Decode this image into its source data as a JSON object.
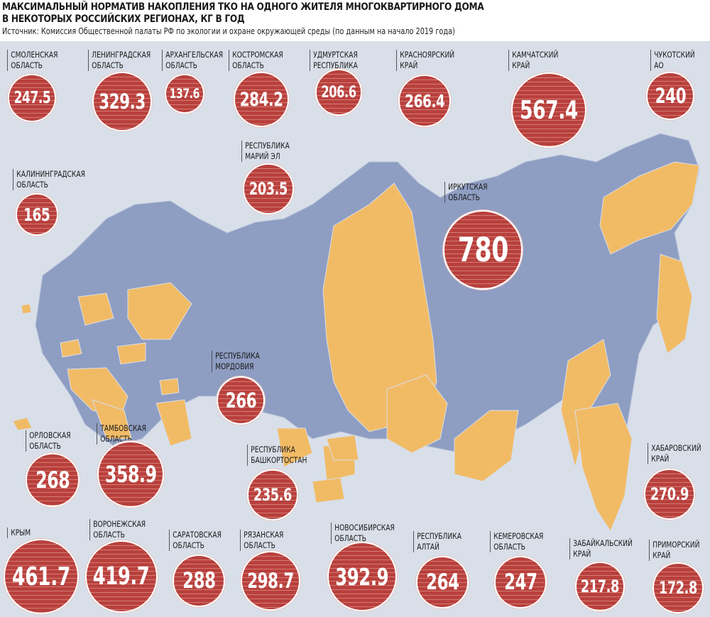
{
  "header": {
    "title_line1": "МАКСИМАЛЬНЫЙ НОРМАТИВ НАКОПЛЕНИЯ ТКО НА ОДНОГО ЖИТЕЛЯ МНОГОКВАРТИРНОГО ДОМА",
    "title_line2": "В НЕКОТОРЫХ РОССИЙСКИХ РЕГИОНАХ, КГ В ГОД",
    "source": "Источник: Комиссия  Общественной палаты РФ по экологии и охране окружающей среды (по данным на начало 2019 года)"
  },
  "colors": {
    "background": "#d8dfe9",
    "map_region": "#8e9dc2",
    "highlight_region": "#f1bb66",
    "circle": "#b8403d"
  },
  "regions": [
    {
      "name": "СМОЛЕНСКАЯ\nОБЛАСТЬ",
      "value": "247.5"
    },
    {
      "name": "ЛЕНИНГРАДСКАЯ\nОБЛАСТЬ",
      "value": "329.3"
    },
    {
      "name": "АРХАНГЕЛЬСКАЯ\nОБЛАСТЬ",
      "value": "137.6"
    },
    {
      "name": "КОСТРОМСКАЯ\nОБЛАСТЬ",
      "value": "284.2"
    },
    {
      "name": "УДМУРТСКАЯ\nРЕСПУБЛИКА",
      "value": "206.6"
    },
    {
      "name": "КРАСНОЯРСКИЙ\nКРАЙ",
      "value": "266.4"
    },
    {
      "name": "КАМЧАТСКИЙ\nКРАЙ",
      "value": "567.4"
    },
    {
      "name": "ЧУКОТСКИЙ\nАО",
      "value": "240"
    },
    {
      "name": "КАЛИНИНГРАДСКАЯ\nОБЛАСТЬ",
      "value": "165"
    },
    {
      "name": "РЕСПУБЛИКА\nМАРИЙ ЭЛ",
      "value": "203.5"
    },
    {
      "name": "ИРКУТСКАЯ\nОБЛАСТЬ",
      "value": "780"
    },
    {
      "name": "РЕСПУБЛИКА\nМОРДОВИЯ",
      "value": "266"
    },
    {
      "name": "ОРЛОВСКАЯ\nОБЛАСТЬ",
      "value": "268"
    },
    {
      "name": "ТАМБОВСКАЯ\nОБЛАСТЬ",
      "value": "358.9"
    },
    {
      "name": "РЕСПУБЛИКА\nБАШКОРТОСТАН",
      "value": "235.6"
    },
    {
      "name": "ХАБАРОВСКИЙ\nКРАЙ",
      "value": "270.9"
    },
    {
      "name": "КРЫМ",
      "value": "461.7"
    },
    {
      "name": "ВОРОНЕЖСКАЯ\nОБЛАСТЬ",
      "value": "419.7"
    },
    {
      "name": "САРАТОВСКАЯ\nОБЛАСТЬ",
      "value": "288"
    },
    {
      "name": "РЯЗАНСКАЯ\nОБЛАСТЬ",
      "value": "298.7"
    },
    {
      "name": "НОВОСИБИРСКАЯ\nОБЛАСТЬ",
      "value": "392.9"
    },
    {
      "name": "РЕСПУБЛИКА\nАЛТАЙ",
      "value": "264"
    },
    {
      "name": "КЕМЕРОВСКАЯ\nОБЛАСТЬ",
      "value": "247"
    },
    {
      "name": "ЗАБАЙКАЛЬСКИЙ\nКРАЙ",
      "value": "217.8"
    },
    {
      "name": "ПРИМОРСКИЙ\nКРАЙ",
      "value": "172.8"
    }
  ]
}
